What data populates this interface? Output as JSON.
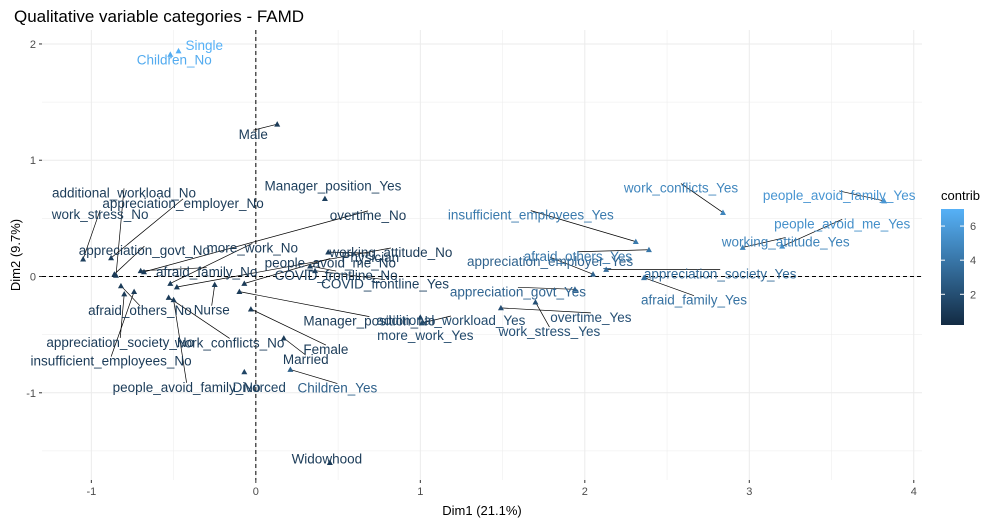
{
  "chart_data": {
    "type": "scatter",
    "title": "Qualitative variable categories - FAMD",
    "xlabel": "Dim1 (21.1%)",
    "ylabel": "Dim2 (9.7%)",
    "xlim": [
      -1.3,
      4.05
    ],
    "ylim": [
      -1.75,
      2.12
    ],
    "x_ticks": [
      -1,
      0,
      1,
      2,
      3,
      4
    ],
    "y_ticks": [
      -1,
      0,
      1,
      2
    ],
    "grid": true,
    "reference_lines": {
      "x": 0,
      "y": 0,
      "style": "dashed"
    },
    "legend": {
      "title": "contrib",
      "position": "right",
      "min": 0.2,
      "max": 7.0,
      "ticks": [
        2,
        4,
        6
      ],
      "low_color": "#132b43",
      "high_color": "#56b1f7"
    },
    "points": [
      {
        "label": "Single",
        "x": -0.47,
        "y": 1.94,
        "contrib": 7.0
      },
      {
        "label": "Children_No",
        "x": -0.52,
        "y": 1.91,
        "contrib": 6.7
      },
      {
        "label": "Male",
        "x": 0.13,
        "y": 1.31,
        "contrib": 1.0
      },
      {
        "label": "Manager_position_Yes",
        "x": 0.42,
        "y": 0.67,
        "contrib": 1.2
      },
      {
        "label": "additional_workload_No",
        "x": -0.85,
        "y": 0.01,
        "contrib": 1.0
      },
      {
        "label": "work_stress_No",
        "x": -1.05,
        "y": 0.15,
        "contrib": 1.2
      },
      {
        "label": "appreciation_employer_No",
        "x": -0.88,
        "y": 0.16,
        "contrib": 1.0
      },
      {
        "label": "overtime_No",
        "x": -0.68,
        "y": 0.04,
        "contrib": 1.0
      },
      {
        "label": "more_work_No",
        "x": -0.52,
        "y": -0.06,
        "contrib": 1.0
      },
      {
        "label": "working_attitude_No",
        "x": -0.48,
        "y": -0.09,
        "contrib": 1.0
      },
      {
        "label": "appreciation_govt_No",
        "x": -0.86,
        "y": 0.02,
        "contrib": 1.0
      },
      {
        "label": "people_avoid_me_No",
        "x": -0.07,
        "y": -0.06,
        "contrib": 1.0
      },
      {
        "label": "Physician",
        "x": 0.44,
        "y": 0.21,
        "contrib": 1.2
      },
      {
        "label": "afraid_family_No",
        "x": -0.7,
        "y": 0.05,
        "contrib": 1.0
      },
      {
        "label": "COVID_frontline_No",
        "x": 0.33,
        "y": 0.09,
        "contrib": 1.3
      },
      {
        "label": "COVID_frontline_Yes",
        "x": 0.36,
        "y": 0.05,
        "contrib": 1.3
      },
      {
        "label": "afraid_others_No",
        "x": -0.82,
        "y": -0.08,
        "contrib": 1.0
      },
      {
        "label": "Nurse",
        "x": -0.25,
        "y": -0.07,
        "contrib": 1.0
      },
      {
        "label": "Manager_position_No",
        "x": -0.1,
        "y": -0.13,
        "contrib": 1.0
      },
      {
        "label": "appreciation_society_No",
        "x": -0.8,
        "y": -0.15,
        "contrib": 1.0
      },
      {
        "label": "work_conflicts_No",
        "x": -0.53,
        "y": -0.18,
        "contrib": 1.0
      },
      {
        "label": "Female",
        "x": -0.03,
        "y": -0.28,
        "contrib": 1.0
      },
      {
        "label": "insufficient_employees_No",
        "x": -0.74,
        "y": -0.13,
        "contrib": 1.0
      },
      {
        "label": "Married",
        "x": 0.17,
        "y": -0.53,
        "contrib": 1.0
      },
      {
        "label": "people_avoid_family_No",
        "x": -0.5,
        "y": -0.2,
        "contrib": 1.0
      },
      {
        "label": "Divorced",
        "x": -0.07,
        "y": -0.82,
        "contrib": 1.5
      },
      {
        "label": "Children_Yes",
        "x": 0.21,
        "y": -0.8,
        "contrib": 2.9
      },
      {
        "label": "Widowhood",
        "x": 0.45,
        "y": -1.6,
        "contrib": 1.0
      },
      {
        "label": "additional_workload_Yes",
        "x": 1.01,
        "y": -0.4,
        "contrib": 1.8
      },
      {
        "label": "overtime_Yes",
        "x": 1.49,
        "y": -0.27,
        "contrib": 2.0
      },
      {
        "label": "more_work_Yes",
        "x": 1.0,
        "y": -0.35,
        "contrib": 1.7
      },
      {
        "label": "work_stress_Yes",
        "x": 1.7,
        "y": -0.22,
        "contrib": 2.1
      },
      {
        "label": "appreciation_govt_Yes",
        "x": 1.94,
        "y": -0.11,
        "contrib": 3.1
      },
      {
        "label": "appreciation_employer_Yes",
        "x": 2.05,
        "y": 0.02,
        "contrib": 3.0
      },
      {
        "label": "insufficient_employees_Yes",
        "x": 2.31,
        "y": 0.3,
        "contrib": 4.2
      },
      {
        "label": "afraid_others_Yes",
        "x": 2.39,
        "y": 0.23,
        "contrib": 4.0
      },
      {
        "label": "appreciation_society_Yes",
        "x": 2.13,
        "y": 0.06,
        "contrib": 3.5
      },
      {
        "label": "afraid_family_Yes",
        "x": 2.36,
        "y": -0.01,
        "contrib": 3.8
      },
      {
        "label": "work_conflicts_Yes",
        "x": 2.84,
        "y": 0.55,
        "contrib": 4.8
      },
      {
        "label": "working_attitude_Yes",
        "x": 2.96,
        "y": 0.25,
        "contrib": 4.7
      },
      {
        "label": "people_avoid_me_Yes",
        "x": 3.2,
        "y": 0.26,
        "contrib": 5.3
      },
      {
        "label": "people_avoid_family_Yes",
        "x": 3.82,
        "y": 0.65,
        "contrib": 5.6
      }
    ]
  }
}
